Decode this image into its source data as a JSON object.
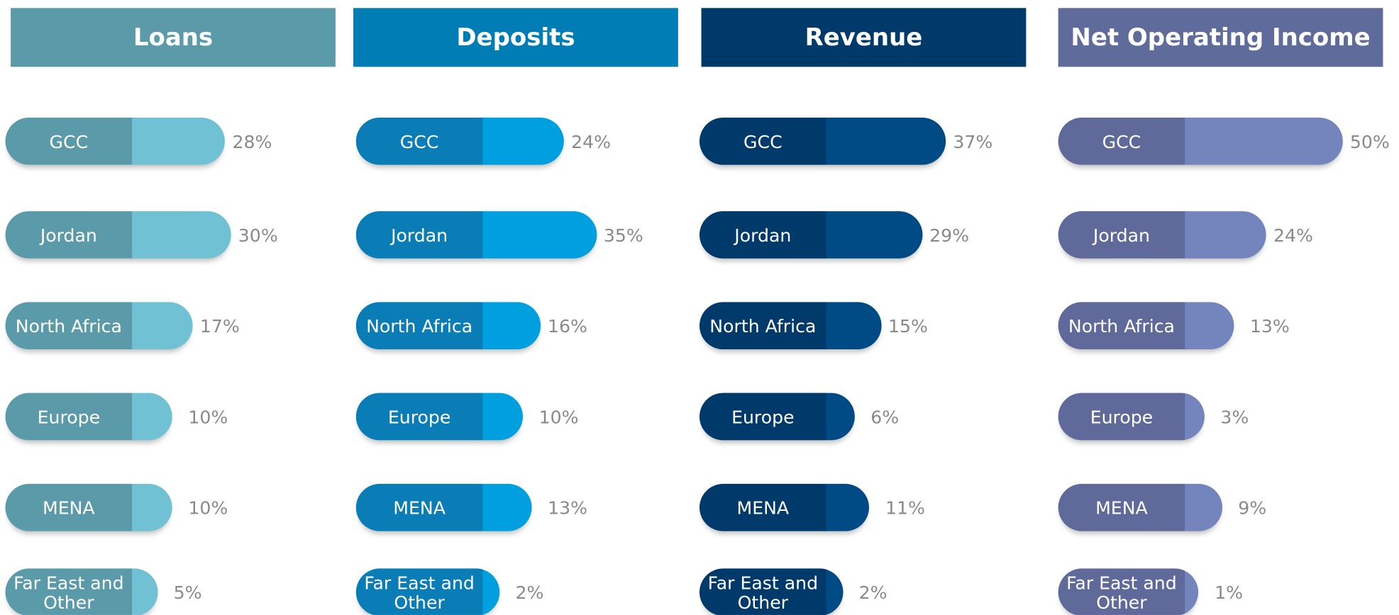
{
  "chart_data": [
    {
      "type": "bar",
      "title": "Loans",
      "header_color": "#5b9aa8",
      "label_color": "#5b9aa8",
      "color": "#6fc1d3",
      "categories": [
        "GCC",
        "Jordan",
        "North Africa",
        "Europe",
        "MENA",
        "Far East and Other"
      ],
      "values": [
        28,
        30,
        17,
        10,
        10,
        5
      ],
      "value_labels": [
        "28%",
        "30%",
        "17%",
        "10%",
        "10%",
        "5%"
      ]
    },
    {
      "type": "bar",
      "title": "Deposits",
      "header_color": "#007db4",
      "label_color": "#0a7db6",
      "color": "#00a0e0",
      "categories": [
        "GCC",
        "Jordan",
        "North Africa",
        "Europe",
        "MENA",
        "Far East and Other"
      ],
      "values": [
        24,
        35,
        16,
        10,
        13,
        2
      ],
      "value_labels": [
        "24%",
        "35%",
        "16%",
        "10%",
        "13%",
        "2%"
      ]
    },
    {
      "type": "bar",
      "title": "Revenue",
      "header_color": "#003a6b",
      "label_color": "#003a6b",
      "color": "#004b85",
      "categories": [
        "GCC",
        "Jordan",
        "North Africa",
        "Europe",
        "MENA",
        "Far East and Other"
      ],
      "values": [
        37,
        29,
        15,
        6,
        11,
        2
      ],
      "value_labels": [
        "37%",
        "29%",
        "15%",
        "6%",
        "11%",
        "2%"
      ]
    },
    {
      "type": "bar",
      "title": "Net Operating Income",
      "header_color": "#5f6b9b",
      "label_color": "#5f6a9a",
      "color": "#7484bd",
      "categories": [
        "GCC",
        "Jordan",
        "North Africa",
        "Europe",
        "MENA",
        "Far East and Other"
      ],
      "values": [
        50,
        24,
        13,
        3,
        9,
        1
      ],
      "value_labels": [
        "50%",
        "24%",
        "13%",
        "3%",
        "9%",
        "1%"
      ]
    }
  ]
}
